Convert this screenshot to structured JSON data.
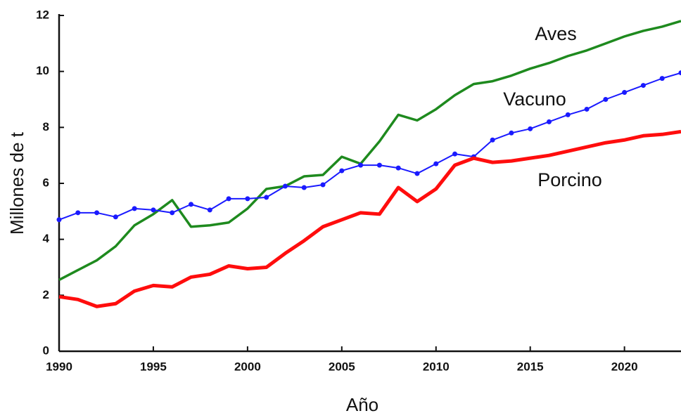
{
  "chart_data": {
    "type": "line",
    "x_label": "Año",
    "y_label": "Millones de t",
    "x": [
      1990,
      1991,
      1992,
      1993,
      1994,
      1995,
      1996,
      1997,
      1998,
      1999,
      2000,
      2001,
      2002,
      2003,
      2004,
      2005,
      2006,
      2007,
      2008,
      2009,
      2010,
      2011,
      2012,
      2013,
      2014,
      2015,
      2016,
      2017,
      2018,
      2019,
      2020,
      2021,
      2022,
      2023
    ],
    "series": [
      {
        "name": "Aves",
        "color": "#1e8a1e",
        "markers": false,
        "values": [
          2.55,
          2.9,
          3.25,
          3.75,
          4.5,
          4.9,
          5.4,
          4.45,
          4.5,
          4.6,
          5.1,
          5.8,
          5.9,
          6.25,
          6.3,
          6.95,
          6.7,
          7.5,
          8.45,
          8.25,
          8.65,
          9.15,
          9.55,
          9.65,
          9.85,
          10.1,
          10.3,
          10.55,
          10.75,
          11.0,
          11.25,
          11.45,
          11.6,
          11.8
        ]
      },
      {
        "name": "Vacuno",
        "color": "#1a1aff",
        "markers": true,
        "values": [
          4.7,
          4.95,
          4.95,
          4.8,
          5.1,
          5.05,
          4.95,
          5.25,
          5.05,
          5.45,
          5.45,
          5.5,
          5.9,
          5.85,
          5.95,
          6.45,
          6.65,
          6.65,
          6.55,
          6.35,
          6.7,
          7.05,
          6.95,
          7.55,
          7.8,
          7.95,
          8.2,
          8.45,
          8.65,
          9.0,
          9.25,
          9.5,
          9.75,
          9.95
        ]
      },
      {
        "name": "Porcino",
        "color": "#ff0d0d",
        "markers": false,
        "values": [
          1.95,
          1.85,
          1.6,
          1.7,
          2.15,
          2.35,
          2.3,
          2.65,
          2.75,
          3.05,
          2.95,
          3.0,
          3.5,
          3.95,
          4.45,
          4.7,
          4.95,
          4.9,
          5.85,
          5.35,
          5.8,
          6.65,
          6.9,
          6.75,
          6.8,
          6.9,
          7.0,
          7.15,
          7.3,
          7.45,
          7.55,
          7.7,
          7.75,
          7.85
        ]
      }
    ],
    "xlim": [
      1990,
      2023
    ],
    "xticks": [
      1990,
      1995,
      2000,
      2005,
      2010,
      2015,
      2020
    ],
    "ylim": [
      0,
      12
    ],
    "yticks": [
      0,
      2,
      4,
      6,
      8,
      10,
      12
    ],
    "grid": false
  }
}
